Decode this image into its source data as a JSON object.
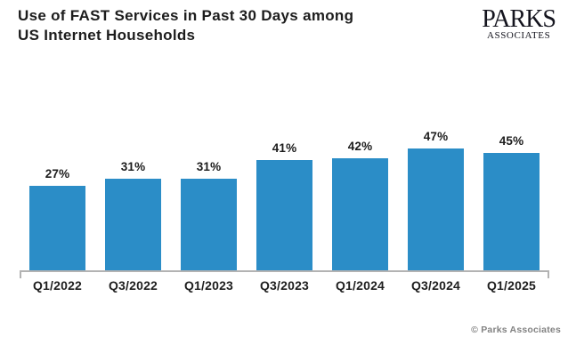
{
  "header": {
    "title_line1": "Use of FAST Services in Past 30 Days among",
    "title_line2": "US Internet Households",
    "logo": {
      "primary": "PARKS",
      "secondary": "ASSOCIATES"
    }
  },
  "chart_data": {
    "type": "bar",
    "title": "Use of FAST Services in Past 30 Days among US Internet Households",
    "categories": [
      "Q1/2022",
      "Q3/2022",
      "Q1/2023",
      "Q3/2023",
      "Q1/2024",
      "Q3/2024",
      "Q1/2025"
    ],
    "values": [
      27,
      31,
      31,
      41,
      42,
      47,
      45
    ],
    "labels": [
      "27%",
      "31%",
      "31%",
      "41%",
      "42%",
      "47%",
      "45%"
    ],
    "unit": "%",
    "xlabel": "",
    "ylabel": "",
    "bar_color": "#2B8DC7",
    "axis_color": "#b3b3b3",
    "grid": false,
    "legend": "none",
    "y_axis_shown": false
  },
  "footer": {
    "copyright": "© Parks Associates"
  }
}
